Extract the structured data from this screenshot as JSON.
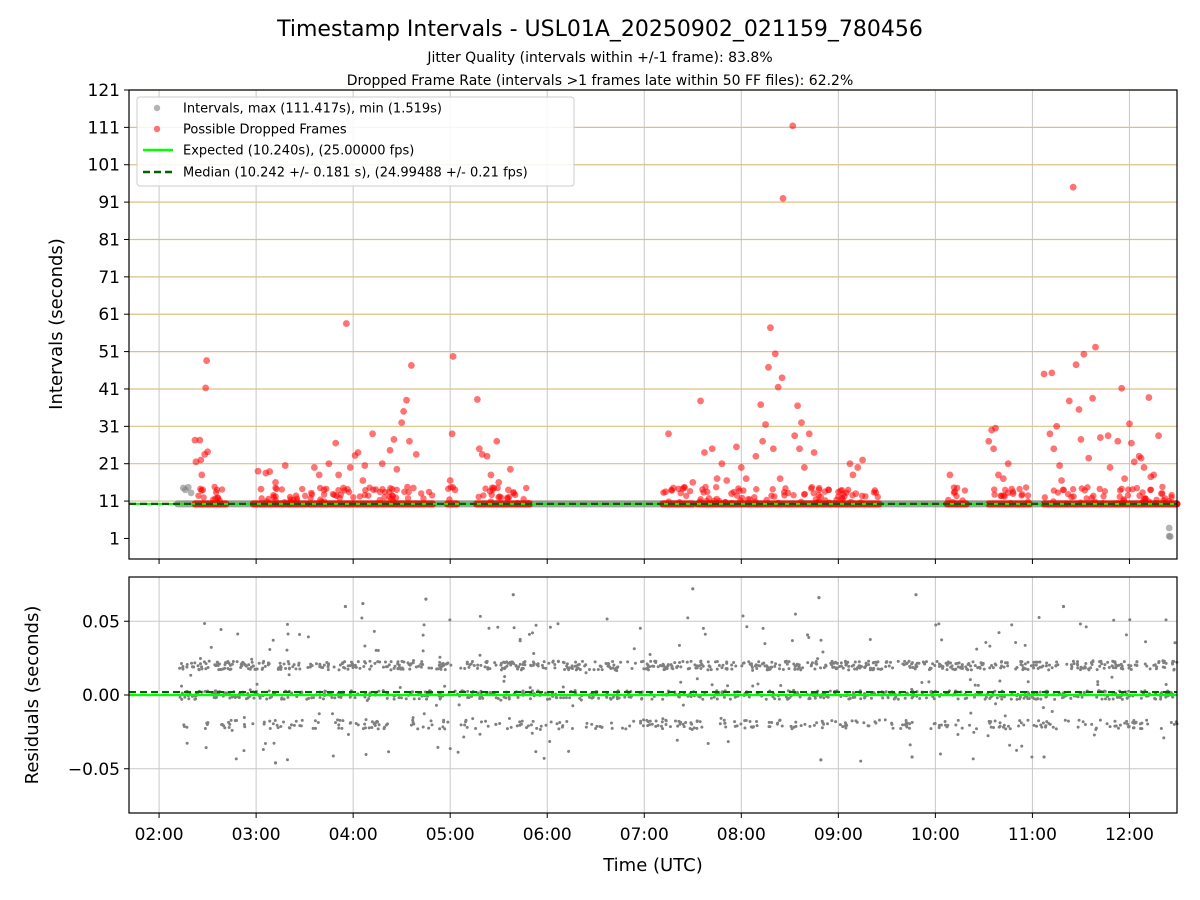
{
  "chart_data": [
    {
      "type": "scatter",
      "title": "Timestamp Intervals - USL01A_20250902_021159_780456",
      "subtitle_lines": [
        "Jitter Quality (intervals within +/-1 frame): 83.8%",
        "Dropped Frame Rate (intervals >1 frames late within 50 FF files): 62.2%"
      ],
      "xlabel": "",
      "ylabel": "Intervals (seconds)",
      "xlim_hours": [
        1.69,
        12.49
      ],
      "ylim": [
        -4.5,
        121
      ],
      "yticks": [
        1,
        11,
        21,
        31,
        41,
        51,
        61,
        71,
        81,
        91,
        101,
        111,
        121
      ],
      "ytick_labels": [
        "1",
        "11",
        "21",
        "31",
        "41",
        "51",
        "61",
        "71",
        "81",
        "91",
        "101",
        "111",
        "121"
      ],
      "hlines": [
        11,
        21,
        31,
        41,
        51,
        61,
        71,
        81,
        91,
        101,
        111,
        121
      ],
      "grid": true,
      "legend_position": "upper-left",
      "legend": [
        {
          "label": "Intervals, max (111.417s), min (1.519s)",
          "color": "#808080",
          "marker": "circle"
        },
        {
          "label": "Possible Dropped Frames",
          "color": "#ff0000",
          "marker": "circle"
        },
        {
          "label": "Expected (10.240s), (25.00000 fps)",
          "color": "#00ff00",
          "marker": "line"
        },
        {
          "label": "Median (10.242 +/- 0.181 s), (24.99488 +/- 0.21 fps)",
          "color": "#006400",
          "marker": "dashed"
        }
      ],
      "expected_value": 10.24,
      "median_value": 10.242,
      "intervals_baseline_ranges_hours": [
        [
          2.19,
          12.49
        ]
      ],
      "intervals_gray_outliers": [
        {
          "x": 2.25,
          "y": 14.5
        },
        {
          "x": 2.27,
          "y": 14.0
        },
        {
          "x": 2.3,
          "y": 14.7
        },
        {
          "x": 2.33,
          "y": 13.2
        },
        {
          "x": 12.41,
          "y": 3.8
        },
        {
          "x": 12.41,
          "y": 1.6
        },
        {
          "x": 12.42,
          "y": 1.5
        }
      ],
      "dropped_baseline_ranges_hours": [
        [
          2.37,
          2.69
        ],
        [
          2.97,
          3.52
        ],
        [
          3.55,
          4.82
        ],
        [
          4.97,
          5.07
        ],
        [
          5.27,
          5.82
        ],
        [
          7.19,
          7.5
        ],
        [
          7.55,
          9.42
        ],
        [
          10.12,
          10.32
        ],
        [
          10.55,
          10.97
        ],
        [
          11.12,
          12.49
        ]
      ],
      "dropped_points": [
        {
          "x": 2.37,
          "y": 27.3
        },
        {
          "x": 2.42,
          "y": 27.3
        },
        {
          "x": 2.38,
          "y": 21.5
        },
        {
          "x": 2.43,
          "y": 22.0
        },
        {
          "x": 2.45,
          "y": 14.0
        },
        {
          "x": 2.47,
          "y": 23.5
        },
        {
          "x": 2.5,
          "y": 24.2
        },
        {
          "x": 2.48,
          "y": 41.3
        },
        {
          "x": 2.49,
          "y": 48.6
        },
        {
          "x": 2.44,
          "y": 18.0
        },
        {
          "x": 3.02,
          "y": 19.0
        },
        {
          "x": 3.05,
          "y": 14.2
        },
        {
          "x": 3.1,
          "y": 18.5
        },
        {
          "x": 3.14,
          "y": 18.9
        },
        {
          "x": 3.2,
          "y": 16.0
        },
        {
          "x": 3.3,
          "y": 20.5
        },
        {
          "x": 3.6,
          "y": 20.0
        },
        {
          "x": 3.65,
          "y": 18.0
        },
        {
          "x": 3.7,
          "y": 14.0
        },
        {
          "x": 3.75,
          "y": 21.0
        },
        {
          "x": 3.82,
          "y": 26.5
        },
        {
          "x": 3.85,
          "y": 18.0
        },
        {
          "x": 3.9,
          "y": 14.5
        },
        {
          "x": 3.93,
          "y": 58.5
        },
        {
          "x": 3.97,
          "y": 20.0
        },
        {
          "x": 4.02,
          "y": 23.2
        },
        {
          "x": 4.05,
          "y": 24.0
        },
        {
          "x": 4.1,
          "y": 16.5
        },
        {
          "x": 4.12,
          "y": 20.5
        },
        {
          "x": 4.2,
          "y": 29.0
        },
        {
          "x": 4.3,
          "y": 21.0
        },
        {
          "x": 4.38,
          "y": 24.6
        },
        {
          "x": 4.42,
          "y": 27.5
        },
        {
          "x": 4.45,
          "y": 19.5
        },
        {
          "x": 4.5,
          "y": 32.0
        },
        {
          "x": 4.52,
          "y": 35.0
        },
        {
          "x": 4.55,
          "y": 38.0
        },
        {
          "x": 4.58,
          "y": 27.0
        },
        {
          "x": 4.6,
          "y": 47.3
        },
        {
          "x": 4.65,
          "y": 23.5
        },
        {
          "x": 4.62,
          "y": 14.5
        },
        {
          "x": 5.02,
          "y": 29.0
        },
        {
          "x": 5.03,
          "y": 49.7
        },
        {
          "x": 5.0,
          "y": 16.5
        },
        {
          "x": 5.05,
          "y": 14.0
        },
        {
          "x": 5.28,
          "y": 38.2
        },
        {
          "x": 5.3,
          "y": 25.0
        },
        {
          "x": 5.33,
          "y": 23.5
        },
        {
          "x": 5.38,
          "y": 23.0
        },
        {
          "x": 5.42,
          "y": 18.0
        },
        {
          "x": 5.45,
          "y": 14.5
        },
        {
          "x": 5.48,
          "y": 27.0
        },
        {
          "x": 5.5,
          "y": 16.0
        },
        {
          "x": 5.62,
          "y": 19.5
        },
        {
          "x": 5.6,
          "y": 14.0
        },
        {
          "x": 7.22,
          "y": 13.5
        },
        {
          "x": 7.25,
          "y": 29.0
        },
        {
          "x": 7.3,
          "y": 14.5
        },
        {
          "x": 7.5,
          "y": 16.0
        },
        {
          "x": 7.58,
          "y": 37.8
        },
        {
          "x": 7.62,
          "y": 24.0
        },
        {
          "x": 7.7,
          "y": 25.0
        },
        {
          "x": 7.75,
          "y": 17.0
        },
        {
          "x": 7.8,
          "y": 21.0
        },
        {
          "x": 7.85,
          "y": 16.5
        },
        {
          "x": 7.9,
          "y": 13.0
        },
        {
          "x": 7.95,
          "y": 25.5
        },
        {
          "x": 8.0,
          "y": 20.0
        },
        {
          "x": 8.05,
          "y": 17.0
        },
        {
          "x": 8.15,
          "y": 23.0
        },
        {
          "x": 8.2,
          "y": 36.8
        },
        {
          "x": 8.22,
          "y": 27.0
        },
        {
          "x": 8.25,
          "y": 31.5
        },
        {
          "x": 8.28,
          "y": 46.8
        },
        {
          "x": 8.3,
          "y": 57.4
        },
        {
          "x": 8.33,
          "y": 25.0
        },
        {
          "x": 8.35,
          "y": 50.4
        },
        {
          "x": 8.38,
          "y": 41.5
        },
        {
          "x": 8.42,
          "y": 44.0
        },
        {
          "x": 8.43,
          "y": 92.0
        },
        {
          "x": 8.4,
          "y": 17.0
        },
        {
          "x": 8.53,
          "y": 111.4
        },
        {
          "x": 8.55,
          "y": 28.5
        },
        {
          "x": 8.58,
          "y": 36.5
        },
        {
          "x": 8.6,
          "y": 25.0
        },
        {
          "x": 8.62,
          "y": 32.0
        },
        {
          "x": 8.65,
          "y": 20.0
        },
        {
          "x": 8.7,
          "y": 29.0
        },
        {
          "x": 8.75,
          "y": 24.0
        },
        {
          "x": 8.8,
          "y": 14.0
        },
        {
          "x": 8.9,
          "y": 14.0
        },
        {
          "x": 9.12,
          "y": 21.0
        },
        {
          "x": 9.15,
          "y": 18.0
        },
        {
          "x": 9.2,
          "y": 20.0
        },
        {
          "x": 9.25,
          "y": 22.0
        },
        {
          "x": 9.18,
          "y": 13.0
        },
        {
          "x": 10.15,
          "y": 18.0
        },
        {
          "x": 10.2,
          "y": 13.5
        },
        {
          "x": 10.55,
          "y": 27.0
        },
        {
          "x": 10.58,
          "y": 30.0
        },
        {
          "x": 10.6,
          "y": 25.0
        },
        {
          "x": 10.62,
          "y": 30.5
        },
        {
          "x": 10.65,
          "y": 18.0
        },
        {
          "x": 10.7,
          "y": 17.0
        },
        {
          "x": 10.75,
          "y": 21.0
        },
        {
          "x": 10.8,
          "y": 13.0
        },
        {
          "x": 11.12,
          "y": 45.0
        },
        {
          "x": 11.2,
          "y": 45.3
        },
        {
          "x": 11.18,
          "y": 29.0
        },
        {
          "x": 11.22,
          "y": 25.0
        },
        {
          "x": 11.25,
          "y": 31.0
        },
        {
          "x": 11.28,
          "y": 20.5
        },
        {
          "x": 11.3,
          "y": 16.5
        },
        {
          "x": 11.38,
          "y": 37.8
        },
        {
          "x": 11.42,
          "y": 95.0
        },
        {
          "x": 11.45,
          "y": 47.5
        },
        {
          "x": 11.48,
          "y": 35.5
        },
        {
          "x": 11.5,
          "y": 27.5
        },
        {
          "x": 11.53,
          "y": 50.3
        },
        {
          "x": 11.58,
          "y": 22.5
        },
        {
          "x": 11.62,
          "y": 38.5
        },
        {
          "x": 11.65,
          "y": 52.2
        },
        {
          "x": 11.7,
          "y": 28.0
        },
        {
          "x": 11.78,
          "y": 28.5
        },
        {
          "x": 11.8,
          "y": 20.0
        },
        {
          "x": 11.88,
          "y": 27.0
        },
        {
          "x": 11.92,
          "y": 41.2
        },
        {
          "x": 11.95,
          "y": 17.0
        },
        {
          "x": 12.0,
          "y": 31.7
        },
        {
          "x": 12.02,
          "y": 26.5
        },
        {
          "x": 12.05,
          "y": 21.5
        },
        {
          "x": 12.1,
          "y": 23.0
        },
        {
          "x": 12.12,
          "y": 22.5
        },
        {
          "x": 12.15,
          "y": 20.0
        },
        {
          "x": 12.2,
          "y": 38.7
        },
        {
          "x": 12.22,
          "y": 17.5
        },
        {
          "x": 12.25,
          "y": 18.0
        },
        {
          "x": 12.3,
          "y": 28.5
        },
        {
          "x": 12.33,
          "y": 13.0
        }
      ]
    },
    {
      "type": "scatter",
      "title": "",
      "xlabel": "Time (UTC)",
      "ylabel": "Residuals (seconds)",
      "xlim_hours": [
        1.69,
        12.49
      ],
      "ylim": [
        -0.08,
        0.08
      ],
      "xticks_hours": [
        2,
        3,
        4,
        5,
        6,
        7,
        8,
        9,
        10,
        11,
        12
      ],
      "xtick_labels": [
        "02:00",
        "03:00",
        "04:00",
        "05:00",
        "06:00",
        "07:00",
        "08:00",
        "09:00",
        "10:00",
        "11:00",
        "12:00"
      ],
      "yticks": [
        0.05,
        0.0,
        -0.05
      ],
      "ytick_labels": [
        "0.05",
        "0.00",
        "−0.05"
      ],
      "grid": true,
      "expected_value": 0.0,
      "median_value": 0.002,
      "residual_x_range_hours": [
        2.2,
        12.49
      ],
      "residual_bands": [
        0.02,
        0.0,
        -0.02
      ],
      "residual_outliers": [
        {
          "x": 3.2,
          "y": -0.046
        },
        {
          "x": 3.92,
          "y": 0.06
        },
        {
          "x": 4.1,
          "y": 0.062
        },
        {
          "x": 4.75,
          "y": 0.065
        },
        {
          "x": 5.65,
          "y": 0.068
        },
        {
          "x": 7.5,
          "y": 0.072
        },
        {
          "x": 8.82,
          "y": -0.044
        },
        {
          "x": 8.8,
          "y": 0.066
        },
        {
          "x": 9.8,
          "y": 0.068
        },
        {
          "x": 9.76,
          "y": -0.042
        },
        {
          "x": 11.32,
          "y": 0.06
        },
        {
          "x": 11.12,
          "y": -0.042
        }
      ],
      "series_colors": {
        "intervals": "#808080",
        "dropped": "#ff0000",
        "expected": "#00ff00",
        "median": "#006400",
        "hline": "#d9c28a",
        "grid": "#c8c8c8"
      }
    }
  ]
}
